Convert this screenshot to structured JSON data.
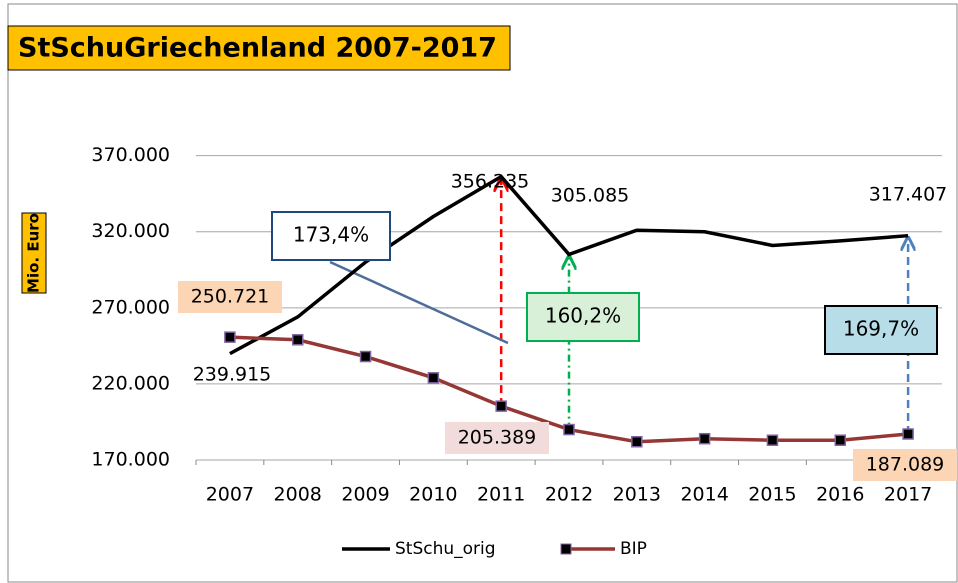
{
  "chart_data": {
    "type": "line",
    "title": "StSchuGriechenland 2007-2017",
    "y_label": "Mio. Euro",
    "categories": [
      "2007",
      "2008",
      "2009",
      "2010",
      "2011",
      "2012",
      "2013",
      "2014",
      "2015",
      "2016",
      "2017"
    ],
    "series": [
      {
        "name": "StSchu_orig",
        "color": "#000000",
        "values": [
          239915,
          264000,
          300000,
          330000,
          356235,
          305085,
          321000,
          320000,
          311000,
          314000,
          317407
        ],
        "value_labels": [
          "239.915",
          null,
          null,
          null,
          "356.235",
          "305.085",
          null,
          null,
          null,
          null,
          "317.407"
        ]
      },
      {
        "name": "BIP",
        "color": "#953735",
        "marker_color": "#000000",
        "values": [
          250721,
          249000,
          238000,
          224000,
          205389,
          190000,
          182000,
          184000,
          183000,
          183000,
          187089
        ],
        "value_labels": [
          "250.721",
          null,
          null,
          null,
          "205.389",
          null,
          null,
          null,
          null,
          null,
          "187.089"
        ]
      }
    ],
    "annotations": [
      "173,4%",
      "160,2%",
      "169,7%"
    ],
    "ylim": [
      170000,
      400000
    ],
    "yticks": [
      {
        "value": 170000,
        "label": "170.000"
      },
      {
        "value": 220000,
        "label": "220.000"
      },
      {
        "value": 270000,
        "label": "270.000"
      },
      {
        "value": 320000,
        "label": "320.000"
      },
      {
        "value": 370000,
        "label": "370.000"
      }
    ],
    "grid": true
  }
}
